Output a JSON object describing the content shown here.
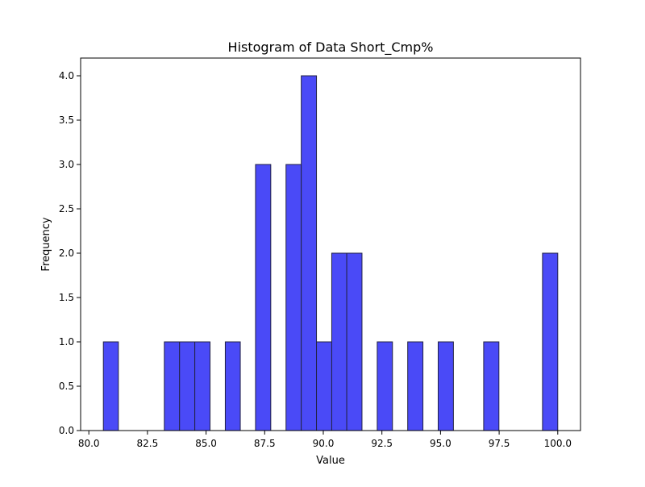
{
  "chart_data": {
    "type": "bar",
    "title": "Histogram of Data Short_Cmp%",
    "xlabel": "Value",
    "ylabel": "Frequency",
    "xlim": [
      79.65,
      100.97
    ],
    "ylim": [
      0,
      4.2
    ],
    "xticks": [
      "80.0",
      "82.5",
      "85.0",
      "87.5",
      "90.0",
      "92.5",
      "95.0",
      "97.5",
      "100.0"
    ],
    "yticks": [
      "0.0",
      "0.5",
      "1.0",
      "1.5",
      "2.0",
      "2.5",
      "3.0",
      "3.5",
      "4.0"
    ],
    "bar_color": "#4a4af7",
    "edge_color": "#222244",
    "bins": [
      {
        "x0": 80.62,
        "x1": 81.26,
        "count": 1
      },
      {
        "x0": 83.22,
        "x1": 83.87,
        "count": 1
      },
      {
        "x0": 83.87,
        "x1": 84.52,
        "count": 1
      },
      {
        "x0": 84.52,
        "x1": 85.17,
        "count": 1
      },
      {
        "x0": 85.82,
        "x1": 86.46,
        "count": 1
      },
      {
        "x0": 87.11,
        "x1": 87.76,
        "count": 3
      },
      {
        "x0": 88.41,
        "x1": 89.06,
        "count": 3
      },
      {
        "x0": 89.06,
        "x1": 89.71,
        "count": 4
      },
      {
        "x0": 89.71,
        "x1": 90.36,
        "count": 1
      },
      {
        "x0": 90.36,
        "x1": 91.0,
        "count": 2
      },
      {
        "x0": 91.0,
        "x1": 91.65,
        "count": 2
      },
      {
        "x0": 92.3,
        "x1": 92.95,
        "count": 1
      },
      {
        "x0": 93.6,
        "x1": 94.25,
        "count": 1
      },
      {
        "x0": 94.9,
        "x1": 95.55,
        "count": 1
      },
      {
        "x0": 96.84,
        "x1": 97.49,
        "count": 1
      },
      {
        "x0": 99.35,
        "x1": 100.0,
        "count": 2
      }
    ]
  }
}
